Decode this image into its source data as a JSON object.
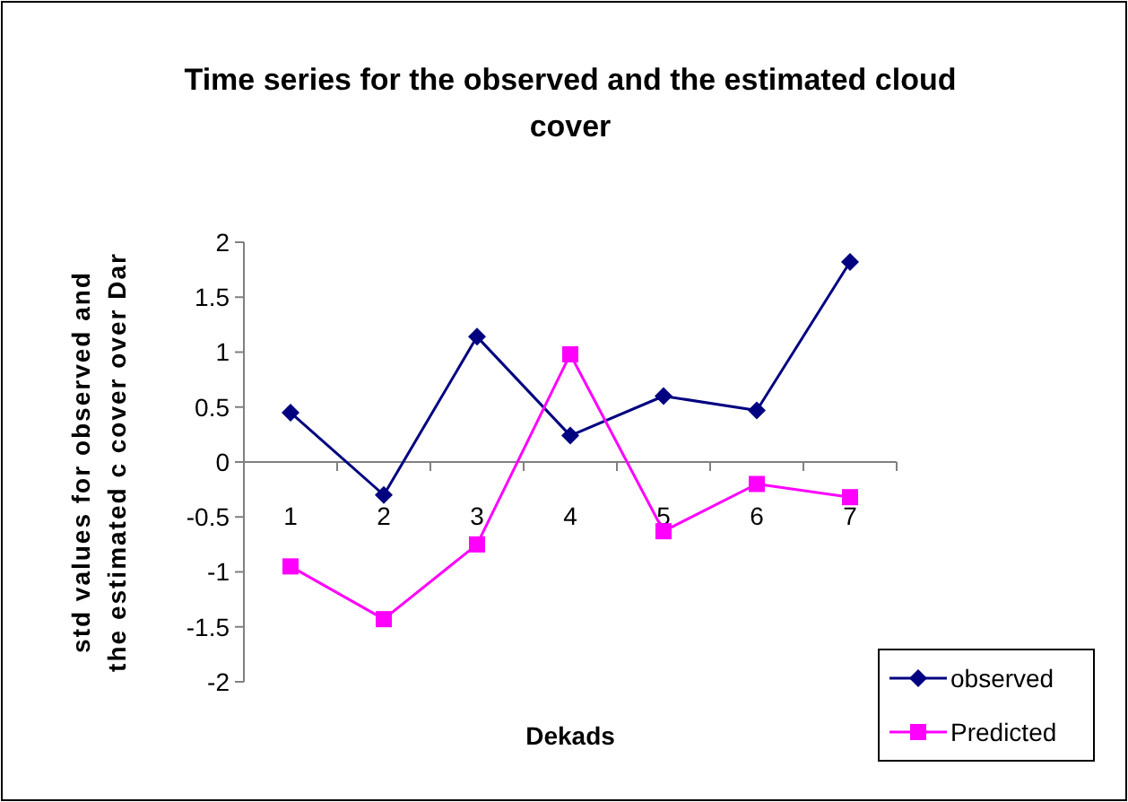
{
  "chart_data": {
    "type": "line",
    "title": "Time series for the observed and the estimated cloud cover",
    "xlabel": "Dekads",
    "ylabel": "std values for observed and the estimated c cover over Dar",
    "categories": [
      "1",
      "2",
      "3",
      "4",
      "5",
      "6",
      "7"
    ],
    "series": [
      {
        "name": "observed",
        "color": "#000080",
        "marker": "diamond",
        "values": [
          0.45,
          -0.3,
          1.14,
          0.24,
          0.6,
          0.47,
          1.82
        ]
      },
      {
        "name": "Predicted",
        "color": "#ff00ff",
        "marker": "square",
        "values": [
          -0.95,
          -1.43,
          -0.75,
          0.98,
          -0.63,
          -0.2,
          -0.32
        ]
      }
    ],
    "ylim": [
      -2,
      2
    ],
    "yticks": [
      -2,
      -1.5,
      -1,
      -0.5,
      0,
      0.5,
      1,
      1.5,
      2
    ],
    "legend": "bottom right",
    "grid": false
  }
}
